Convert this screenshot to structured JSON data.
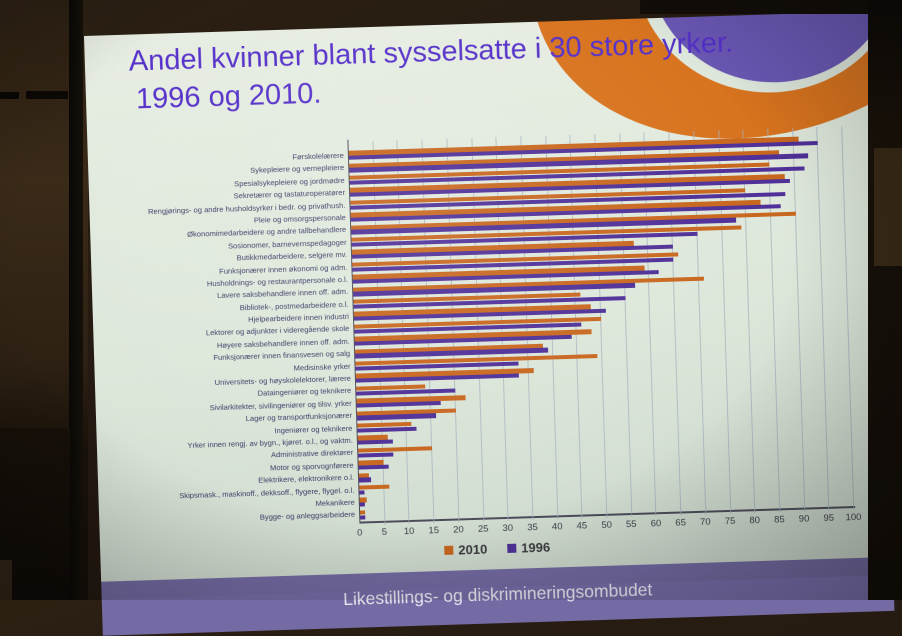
{
  "slide": {
    "title_line1": "Andel kvinner blant sysselsatte i 30 store yrker.",
    "title_line2": "1996 og 2010.",
    "footer": "Likestillings- og diskrimineringsombudet"
  },
  "colors": {
    "title_text": "#5530c9",
    "bar_2010": "#c8671f",
    "bar_1996": "#4f3098",
    "footer_band": "#746aa4",
    "deco_orange": "#d8731e",
    "deco_purple": "#6a57b4",
    "slide_background": "#dfe8dd",
    "gridline": "#a3b2bd"
  },
  "chart_data": {
    "type": "bar",
    "orientation": "horizontal",
    "title": "Andel kvinner blant sysselsatte i 30 store yrker. 1996 og 2010.",
    "xlabel": "",
    "ylabel": "",
    "x_axis": {
      "min": 0,
      "max": 100,
      "step": 5
    },
    "grid": true,
    "legend_position": "bottom",
    "categories": [
      "Førskolelærere",
      "Sykepleiere og vernepleiere",
      "Spesialsykepleiere og jordmødre",
      "Sekretærer og tastaturoperatører",
      "Rengjørings- og andre husholdsyrker i bedr. og privathush.",
      "Pleie og omsorgspersonale",
      "Økonomimedarbeidere og andre tallbehandlere",
      "Sosionomer, barnevernspedagoger",
      "Butikkmedarbeidere, selgere mv.",
      "Funksjonærer innen økonomi og adm.",
      "Husholdnings- og restaurantpersonale o.l.",
      "Lavere saksbehandlere innen off. adm.",
      "Bibliotek-, postmedarbeidere o.l.",
      "Hjelpearbeidere innen industri",
      "Lektorer og adjunkter i videregående skole",
      "Høyere saksbehandlere innen off. adm.",
      "Funksjonærer innen finansvesen og salg",
      "Medisinske yrker",
      "Universitets- og høyskolelektorer, lærere",
      "Dataingeniører og teknikere",
      "Sivilarkitekter, sivilingeniører og tilsv. yrker",
      "Lager og transportfunksjonærer",
      "Ingeniører og teknikere",
      "Yrker innen rengj. av bygn., kjøret. o.l., og vaktm.",
      "Administrative direktører",
      "Motor og sporvognførere",
      "Elektrikere, elektronikere o.l.",
      "Skipsmask., maskinoff., dekksoff., flygere, flygel. o.l.",
      "Mekanikere",
      "Bygge- og anleggsarbeidere"
    ],
    "series": [
      {
        "name": "2010",
        "color": "#c8671f",
        "values": [
          91,
          87,
          85,
          88,
          80,
          83,
          90,
          79,
          57,
          66,
          59,
          71,
          46,
          48,
          50,
          48,
          38,
          49,
          36,
          14,
          22,
          20,
          11,
          6,
          15,
          5,
          2,
          6,
          1.5,
          1
        ]
      },
      {
        "name": "1996",
        "color": "#4f3098",
        "values": [
          95,
          93,
          92,
          89,
          88,
          87,
          78,
          70,
          65,
          65,
          62,
          57,
          55,
          51,
          46,
          44,
          39,
          33,
          33,
          20,
          17,
          16,
          12,
          7,
          7,
          6,
          2.5,
          1,
          1,
          1
        ]
      }
    ]
  }
}
